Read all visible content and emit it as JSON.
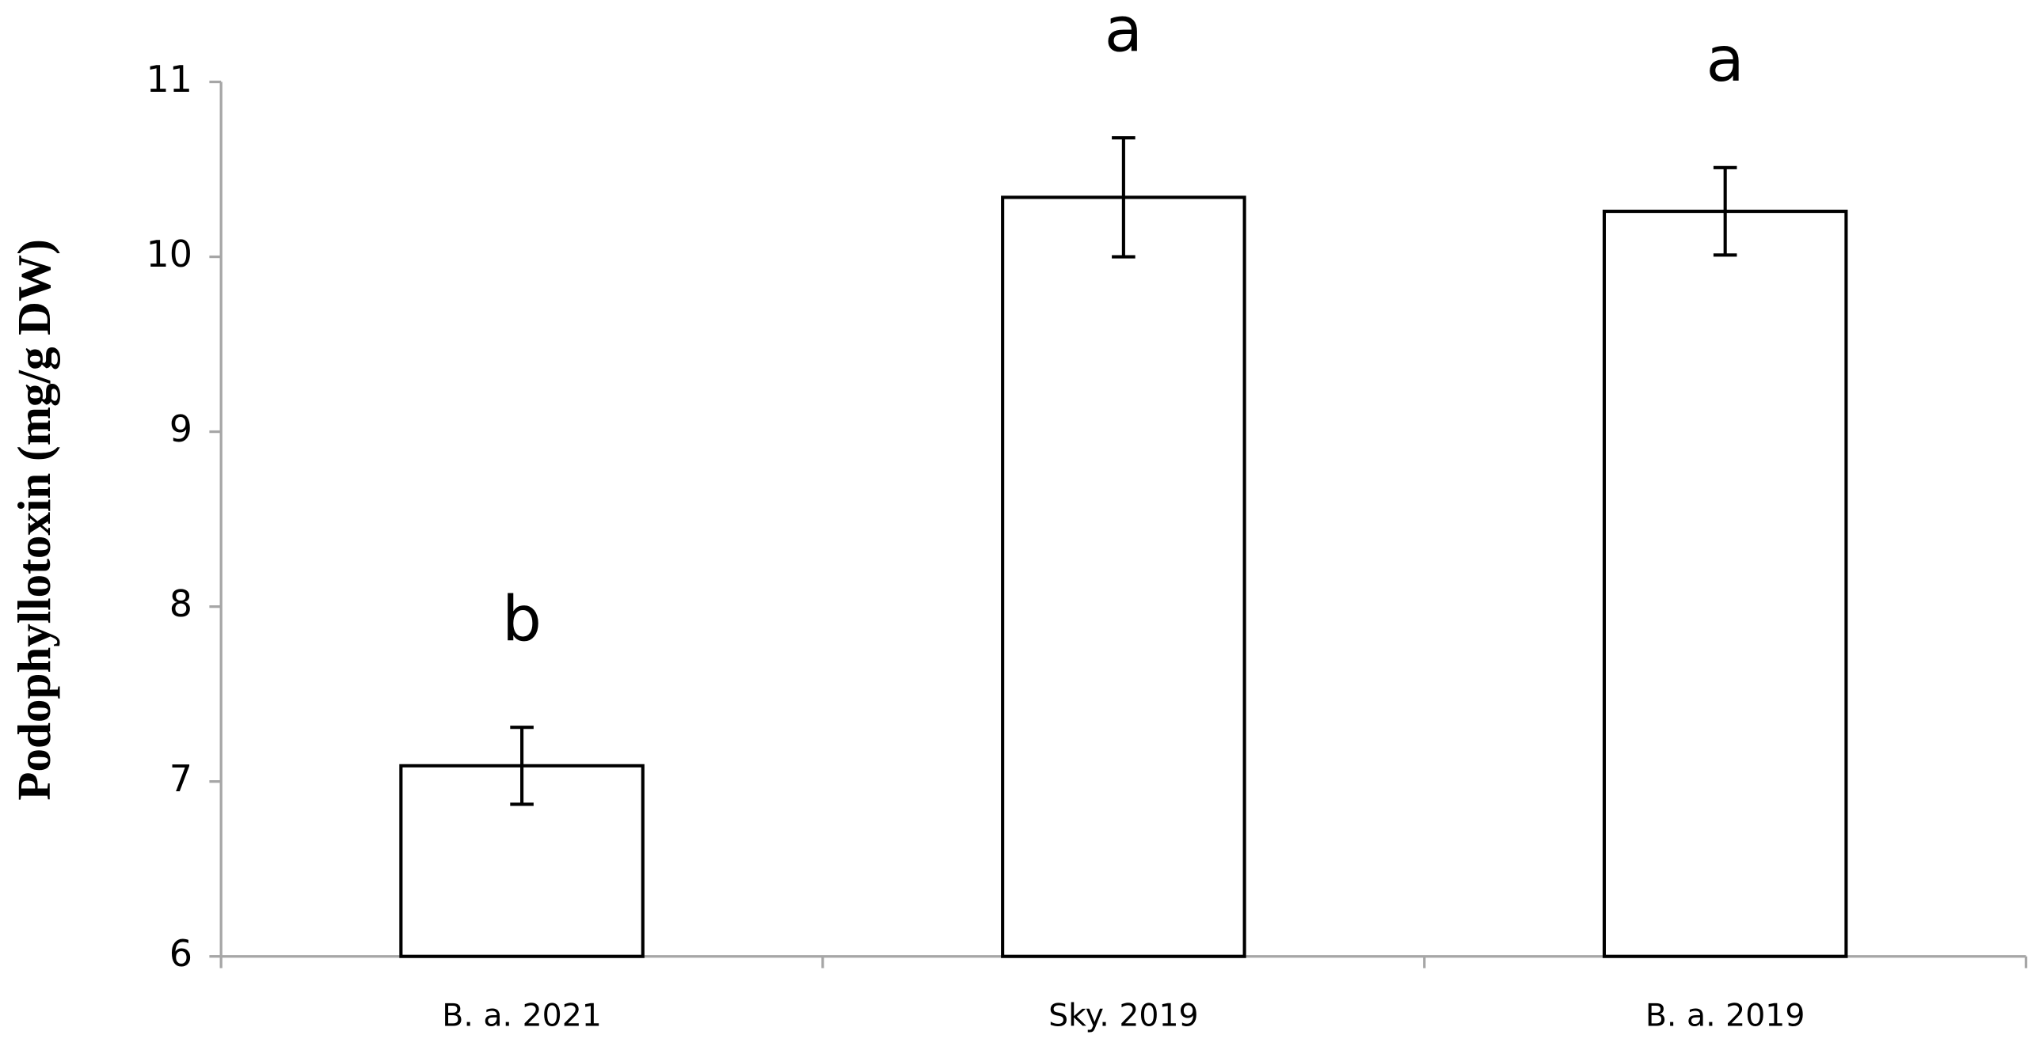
{
  "chart_data": {
    "type": "bar",
    "y_label": "Podophyllotoxin (mg/g DW)",
    "categories": [
      "B. a. 2021",
      "Sky. 2019",
      "B. a. 2019"
    ],
    "values": [
      7.09,
      10.34,
      10.26
    ],
    "errors": [
      0.22,
      0.34,
      0.25
    ],
    "annotations": [
      "b",
      "a",
      "a"
    ],
    "color": "#ffffff",
    "ylim": [
      6,
      11
    ],
    "yticks": [
      6,
      7,
      8,
      9,
      10,
      11
    ],
    "grid": false
  }
}
